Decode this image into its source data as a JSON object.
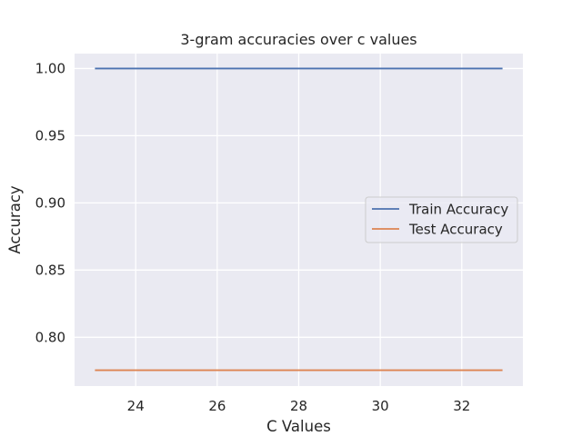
{
  "chart_data": {
    "type": "line",
    "title": "3-gram accuracies over c values",
    "xlabel": "C Values",
    "ylabel": "Accuracy",
    "x": [
      23,
      24,
      25,
      26,
      27,
      28,
      29,
      30,
      31,
      32,
      33
    ],
    "xlim": [
      22.5,
      33.5
    ],
    "ylim": [
      0.7637,
      1.0111
    ],
    "xticks": [
      24,
      26,
      28,
      30,
      32
    ],
    "xtick_labels": [
      "24",
      "26",
      "28",
      "30",
      "32"
    ],
    "yticks": [
      0.8,
      0.85,
      0.9,
      0.95,
      1.0
    ],
    "ytick_labels": [
      "0.80",
      "0.85",
      "0.90",
      "0.95",
      "1.00"
    ],
    "grid": true,
    "legend_position": "center-right",
    "series": [
      {
        "name": "Train Accuracy",
        "color": "#4c72b0",
        "values": [
          1.0,
          1.0,
          1.0,
          1.0,
          1.0,
          1.0,
          1.0,
          1.0,
          1.0,
          1.0,
          1.0
        ]
      },
      {
        "name": "Test Accuracy",
        "color": "#dd8452",
        "values": [
          0.7755,
          0.7755,
          0.7755,
          0.7755,
          0.7755,
          0.7755,
          0.7755,
          0.7755,
          0.7755,
          0.7755,
          0.7755
        ]
      }
    ],
    "plot_background": "#eaeaf2",
    "grid_color": "#ffffff"
  }
}
